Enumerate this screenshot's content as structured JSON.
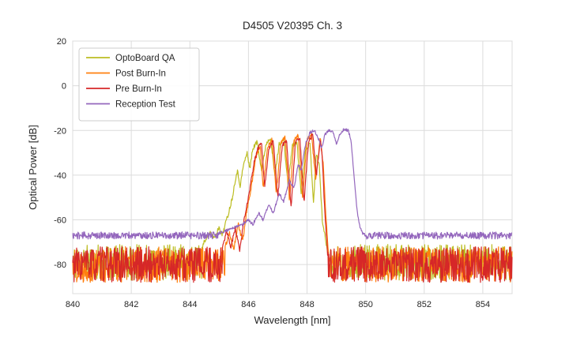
{
  "chart_data": {
    "type": "line",
    "title": "D4505 V20395 Ch. 3",
    "xlabel": "Wavelength [nm]",
    "ylabel": "Optical Power [dB]",
    "xlim": [
      840,
      855
    ],
    "ylim": [
      -93,
      20
    ],
    "xticks": [
      840,
      842,
      844,
      846,
      848,
      850,
      852,
      854
    ],
    "yticks": [
      20,
      0,
      -20,
      -40,
      -60,
      -80
    ],
    "grid": true,
    "grid_color": "#dcdcdc",
    "legend_position": "upper left",
    "series": [
      {
        "name": "OptoBoard QA",
        "color": "#bcbd22",
        "seed": 11,
        "signal_noise": 1.0,
        "noise_segments": [
          {
            "from": 840,
            "to": 844.4,
            "base": -79,
            "amp": 8
          },
          {
            "from": 848.8,
            "to": 855,
            "base": -79,
            "amp": 8
          }
        ],
        "signal": [
          [
            844.4,
            -73
          ],
          [
            844.55,
            -68
          ],
          [
            844.7,
            -66
          ],
          [
            844.85,
            -68
          ],
          [
            845.0,
            -63
          ],
          [
            845.1,
            -67
          ],
          [
            845.2,
            -62
          ],
          [
            845.3,
            -58
          ],
          [
            845.45,
            -50
          ],
          [
            845.55,
            -42
          ],
          [
            845.62,
            -38
          ],
          [
            845.72,
            -45
          ],
          [
            845.82,
            -36
          ],
          [
            845.95,
            -30
          ],
          [
            846.05,
            -37
          ],
          [
            846.15,
            -28
          ],
          [
            846.3,
            -25
          ],
          [
            846.45,
            -38
          ],
          [
            846.6,
            -26
          ],
          [
            846.75,
            -23
          ],
          [
            846.9,
            -40
          ],
          [
            847.05,
            -26
          ],
          [
            847.2,
            -24
          ],
          [
            847.35,
            -44
          ],
          [
            847.5,
            -27
          ],
          [
            847.65,
            -25
          ],
          [
            847.8,
            -48
          ],
          [
            847.95,
            -28
          ],
          [
            848.1,
            -26
          ],
          [
            848.22,
            -52
          ],
          [
            848.32,
            -30
          ],
          [
            848.42,
            -36
          ],
          [
            848.52,
            -60
          ],
          [
            848.62,
            -68
          ],
          [
            848.75,
            -78
          ]
        ]
      },
      {
        "name": "Post Burn-In",
        "color": "#ff7f0e",
        "seed": 22,
        "signal_noise": 1.0,
        "noise_segments": [
          {
            "from": 840,
            "to": 845.2,
            "base": -80,
            "amp": 8
          },
          {
            "from": 848.78,
            "to": 855,
            "base": -80,
            "amp": 8
          }
        ],
        "signal": [
          [
            845.2,
            -72
          ],
          [
            845.35,
            -66
          ],
          [
            845.5,
            -73
          ],
          [
            845.65,
            -62
          ],
          [
            845.8,
            -70
          ],
          [
            845.95,
            -55
          ],
          [
            846.1,
            -45
          ],
          [
            846.25,
            -32
          ],
          [
            846.4,
            -27
          ],
          [
            846.5,
            -46
          ],
          [
            846.65,
            -27
          ],
          [
            846.8,
            -24
          ],
          [
            846.95,
            -48
          ],
          [
            847.1,
            -26
          ],
          [
            847.25,
            -23
          ],
          [
            847.4,
            -52
          ],
          [
            847.55,
            -25
          ],
          [
            847.7,
            -22
          ],
          [
            847.85,
            -50
          ],
          [
            848.0,
            -24
          ],
          [
            848.15,
            -22
          ],
          [
            848.3,
            -42
          ],
          [
            848.45,
            -23
          ],
          [
            848.55,
            -35
          ],
          [
            848.65,
            -60
          ],
          [
            848.75,
            -78
          ]
        ]
      },
      {
        "name": "Pre Burn-In",
        "color": "#d62728",
        "seed": 33,
        "signal_noise": 1.0,
        "noise_segments": [
          {
            "from": 840,
            "to": 845.1,
            "base": -80,
            "amp": 8
          },
          {
            "from": 848.72,
            "to": 855,
            "base": -80,
            "amp": 8
          }
        ],
        "signal": [
          [
            845.1,
            -73
          ],
          [
            845.25,
            -65
          ],
          [
            845.4,
            -72
          ],
          [
            845.55,
            -64
          ],
          [
            845.7,
            -74
          ],
          [
            845.85,
            -60
          ],
          [
            846.0,
            -50
          ],
          [
            846.1,
            -42
          ],
          [
            846.2,
            -34
          ],
          [
            846.32,
            -28
          ],
          [
            846.45,
            -26
          ],
          [
            846.55,
            -45
          ],
          [
            846.7,
            -28
          ],
          [
            846.85,
            -25
          ],
          [
            847.0,
            -50
          ],
          [
            847.15,
            -27
          ],
          [
            847.3,
            -24
          ],
          [
            847.45,
            -55
          ],
          [
            847.6,
            -26
          ],
          [
            847.75,
            -23
          ],
          [
            847.9,
            -52
          ],
          [
            848.05,
            -25
          ],
          [
            848.2,
            -22
          ],
          [
            848.32,
            -40
          ],
          [
            848.45,
            -24
          ],
          [
            848.52,
            -32
          ],
          [
            848.6,
            -55
          ],
          [
            848.7,
            -75
          ]
        ]
      },
      {
        "name": "Reception Test",
        "color": "#9467bd",
        "seed": 44,
        "signal_noise": 0.6,
        "noise_segments": [
          {
            "from": 840,
            "to": 845.0,
            "base": -67,
            "amp": 1.6
          },
          {
            "from": 849.9,
            "to": 855,
            "base": -67,
            "amp": 1.6
          }
        ],
        "signal": [
          [
            845.0,
            -66
          ],
          [
            845.4,
            -64
          ],
          [
            845.8,
            -62
          ],
          [
            846.0,
            -60
          ],
          [
            846.15,
            -62
          ],
          [
            846.35,
            -57
          ],
          [
            846.5,
            -60
          ],
          [
            846.7,
            -53
          ],
          [
            846.85,
            -57
          ],
          [
            847.05,
            -48
          ],
          [
            847.2,
            -52
          ],
          [
            847.4,
            -42
          ],
          [
            847.55,
            -46
          ],
          [
            847.7,
            -35
          ],
          [
            847.8,
            -38
          ],
          [
            847.95,
            -26
          ],
          [
            848.1,
            -21
          ],
          [
            848.25,
            -20
          ],
          [
            848.4,
            -24
          ],
          [
            848.5,
            -28
          ],
          [
            848.6,
            -22
          ],
          [
            848.75,
            -20
          ],
          [
            848.9,
            -21
          ],
          [
            849.0,
            -26
          ],
          [
            849.1,
            -22
          ],
          [
            849.25,
            -19.5
          ],
          [
            849.4,
            -20
          ],
          [
            849.5,
            -24
          ],
          [
            849.6,
            -40
          ],
          [
            849.7,
            -55
          ],
          [
            849.8,
            -63
          ],
          [
            849.9,
            -66
          ]
        ]
      }
    ]
  }
}
